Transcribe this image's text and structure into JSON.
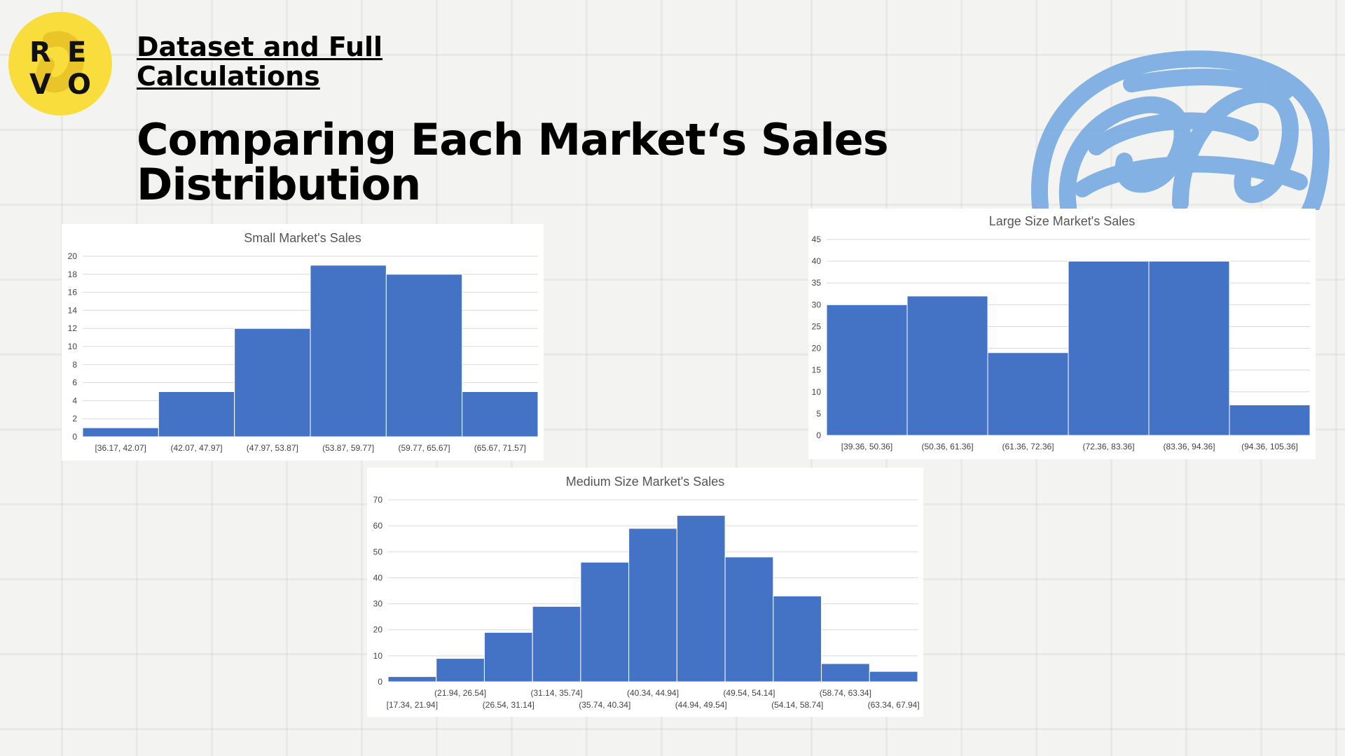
{
  "header": {
    "logo_letters": [
      "R",
      "E",
      "V",
      "O"
    ],
    "link_title": "Dataset and Full Calculations",
    "main_title": "Comparing Each Market‘s Sales Distribution"
  },
  "colors": {
    "bar": "#4472c4",
    "logo_yellow": "#f8dd3c",
    "scribble_blue": "#7eaee3"
  },
  "chart_data": [
    {
      "id": "small",
      "type": "bar",
      "title": "Small Market's Sales",
      "categories": [
        "[36.17, 42.07]",
        "(42.07, 47.97]",
        "(47.97, 53.87]",
        "(53.87, 59.77]",
        "(59.77, 65.67]",
        "(65.67, 71.57]"
      ],
      "values": [
        1,
        5,
        12,
        19,
        18,
        5
      ],
      "ylim": [
        0,
        20
      ],
      "yticks": [
        0,
        2,
        4,
        6,
        8,
        10,
        12,
        14,
        16,
        18,
        20
      ],
      "grid": true,
      "xlabel": "",
      "ylabel": ""
    },
    {
      "id": "large",
      "type": "bar",
      "title": "Large Size Market's Sales",
      "categories": [
        "[39.36, 50.36]",
        "(50.36, 61.36]",
        "(61.36, 72.36]",
        "(72.36, 83.36]",
        "(83.36, 94.36]",
        "(94.36, 105.36]"
      ],
      "values": [
        30,
        32,
        19,
        40,
        40,
        7
      ],
      "ylim": [
        0,
        45
      ],
      "yticks": [
        0,
        5,
        10,
        15,
        20,
        25,
        30,
        35,
        40,
        45
      ],
      "grid": true,
      "xlabel": "",
      "ylabel": ""
    },
    {
      "id": "medium",
      "type": "bar",
      "title": "Medium Size Market's Sales",
      "categories": [
        "[17.34, 21.94]",
        "(21.94, 26.54]",
        "(26.54, 31.14]",
        "(31.14, 35.74]",
        "(35.74, 40.34]",
        "(40.34, 44.94]",
        "(44.94, 49.54]",
        "(49.54, 54.14]",
        "(54.14, 58.74]",
        "(58.74, 63.34]",
        "(63.34, 67.94]"
      ],
      "values": [
        2,
        9,
        19,
        29,
        46,
        59,
        64,
        48,
        33,
        7,
        4
      ],
      "ylim": [
        0,
        70
      ],
      "yticks": [
        0,
        10,
        20,
        30,
        40,
        50,
        60,
        70
      ],
      "grid": true,
      "xlabel": "",
      "ylabel": ""
    }
  ]
}
